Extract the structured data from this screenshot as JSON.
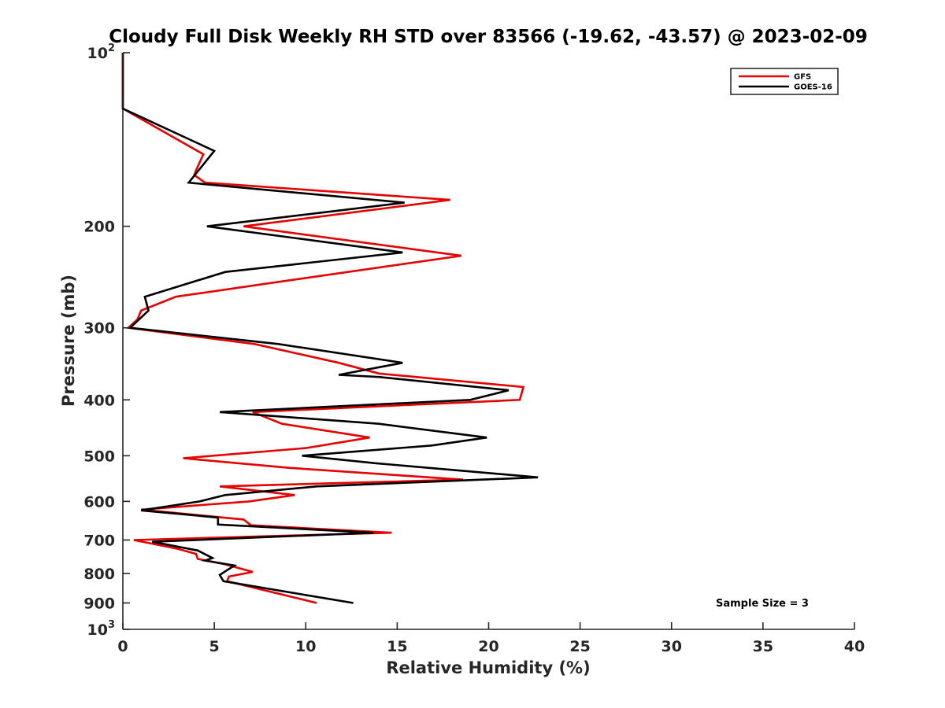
{
  "chart_data": {
    "type": "line",
    "title": "Cloudy Full Disk Weekly RH STD over 83566 (-19.62, -43.57) @ 2023-02-09",
    "xlabel": "Relative Humidity (%)",
    "ylabel": "Pressure (mb)",
    "xlim": [
      0,
      40
    ],
    "ylim": [
      100,
      1000
    ],
    "yscale": "log",
    "yreversed": true,
    "grid": false,
    "legend_position": "top-right",
    "x_ticks": [
      "0",
      "5",
      "10",
      "15",
      "20",
      "25",
      "30",
      "35",
      "40"
    ],
    "y_ticks": [
      {
        "value": 100,
        "label": "10",
        "sup": "2"
      },
      {
        "value": 200,
        "label": "200",
        "sup": ""
      },
      {
        "value": 300,
        "label": "300",
        "sup": ""
      },
      {
        "value": 400,
        "label": "400",
        "sup": ""
      },
      {
        "value": 500,
        "label": "500",
        "sup": ""
      },
      {
        "value": 600,
        "label": "600",
        "sup": ""
      },
      {
        "value": 700,
        "label": "700",
        "sup": ""
      },
      {
        "value": 800,
        "label": "800",
        "sup": ""
      },
      {
        "value": 900,
        "label": "900",
        "sup": ""
      },
      {
        "value": 1000,
        "label": "10",
        "sup": "3"
      }
    ],
    "annotation": "Sample Size = 3",
    "series": [
      {
        "name": "GFS",
        "color": "#e60000",
        "points": [
          [
            0.0,
            100
          ],
          [
            0.0,
            125
          ],
          [
            4.4,
            150
          ],
          [
            4.0,
            160
          ],
          [
            3.9,
            163
          ],
          [
            4.5,
            168
          ],
          [
            17.9,
            180
          ],
          [
            6.6,
            200
          ],
          [
            18.5,
            225
          ],
          [
            8.4,
            250
          ],
          [
            2.9,
            265
          ],
          [
            1.0,
            280
          ],
          [
            0.8,
            290
          ],
          [
            0.3,
            300
          ],
          [
            7.2,
            320
          ],
          [
            11.8,
            345
          ],
          [
            14.0,
            360
          ],
          [
            21.9,
            380
          ],
          [
            21.7,
            400
          ],
          [
            7.1,
            420
          ],
          [
            8.7,
            440
          ],
          [
            13.5,
            465
          ],
          [
            10.0,
            485
          ],
          [
            3.3,
            505
          ],
          [
            9.2,
            525
          ],
          [
            18.6,
            550
          ],
          [
            5.3,
            565
          ],
          [
            9.4,
            585
          ],
          [
            6.9,
            600
          ],
          [
            1.0,
            620
          ],
          [
            6.6,
            645
          ],
          [
            7.0,
            660
          ],
          [
            14.7,
            680
          ],
          [
            0.6,
            700
          ],
          [
            3.0,
            725
          ],
          [
            4.0,
            740
          ],
          [
            4.1,
            755
          ],
          [
            5.5,
            770
          ],
          [
            7.1,
            795
          ],
          [
            5.8,
            810
          ],
          [
            5.7,
            825
          ],
          [
            10.6,
            900
          ]
        ]
      },
      {
        "name": "GOES-16",
        "color": "#000000",
        "points": [
          [
            0.0,
            100
          ],
          [
            0.0,
            125
          ],
          [
            5.0,
            148
          ],
          [
            3.6,
            168
          ],
          [
            15.4,
            182
          ],
          [
            4.6,
            200
          ],
          [
            15.3,
            222
          ],
          [
            5.6,
            240
          ],
          [
            1.2,
            265
          ],
          [
            1.4,
            280
          ],
          [
            0.4,
            300
          ],
          [
            8.5,
            320
          ],
          [
            15.3,
            345
          ],
          [
            11.8,
            362
          ],
          [
            14.0,
            365
          ],
          [
            21.1,
            385
          ],
          [
            19.0,
            400
          ],
          [
            5.3,
            420
          ],
          [
            14.0,
            440
          ],
          [
            19.9,
            465
          ],
          [
            16.9,
            480
          ],
          [
            9.8,
            500
          ],
          [
            13.8,
            515
          ],
          [
            22.7,
            545
          ],
          [
            10.6,
            565
          ],
          [
            5.6,
            585
          ],
          [
            4.2,
            600
          ],
          [
            1.0,
            622
          ],
          [
            5.2,
            640
          ],
          [
            5.2,
            658
          ],
          [
            13.7,
            680
          ],
          [
            1.6,
            705
          ],
          [
            4.1,
            730
          ],
          [
            4.9,
            752
          ],
          [
            4.5,
            760
          ],
          [
            6.1,
            775
          ],
          [
            5.5,
            797
          ],
          [
            5.3,
            805
          ],
          [
            5.5,
            825
          ],
          [
            12.6,
            900
          ]
        ]
      }
    ]
  }
}
